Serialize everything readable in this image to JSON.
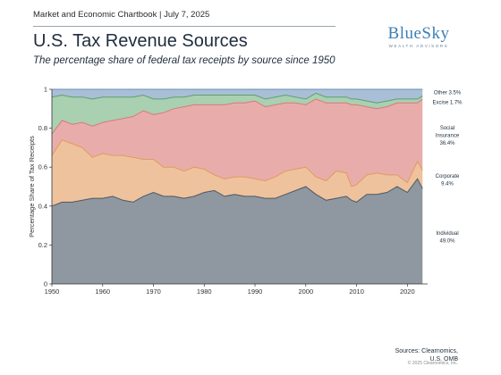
{
  "header": {
    "chartbook": "Market and Economic Chartbook | July 7, 2025",
    "title": "U.S. Tax Revenue Sources",
    "subtitle": "The percentage share of federal tax receipts by source since 1950"
  },
  "logo": {
    "name": "BlueSky",
    "tagline": "WEALTH ADVISORS"
  },
  "footer": {
    "source_line1": "Sources: Clearnomics,",
    "source_line2": "U.S. OMB",
    "copyright": "© 2025 Clearnomics, Inc."
  },
  "chart_data": {
    "type": "area",
    "stacked": true,
    "ylabel": "Percentage Share of Tax Receipts",
    "xlabel": "",
    "xlim": [
      1950,
      2024
    ],
    "ylim": [
      0,
      1
    ],
    "x_ticks": [
      1950,
      1960,
      1970,
      1980,
      1990,
      2000,
      2010,
      2020
    ],
    "y_ticks": [
      0,
      0.2,
      0.4,
      0.6,
      0.8,
      1
    ],
    "y_tick_labels": [
      "0",
      "0.2",
      "0.4",
      "0.6",
      "0.8",
      "1"
    ],
    "grid": false,
    "legend": "inline labels at right end",
    "colors": {
      "Individual": "#8f98a0",
      "Corporate": "#eec29c",
      "Social Insurance": "#e8adab",
      "Excise": "#a9d0b1",
      "Other": "#a9bfd8"
    },
    "line_colors": {
      "Individual": "#4d5862",
      "Corporate": "#e09a62",
      "Social Insurance": "#d8797c",
      "Excise": "#5e9f6e",
      "Other": "#6d8fb8"
    },
    "end_labels": [
      {
        "series": "Other",
        "lines": [
          "Other  3.5%"
        ]
      },
      {
        "series": "Excise",
        "lines": [
          "Excise  1.7%"
        ]
      },
      {
        "series": "Social Insurance",
        "lines": [
          "Social",
          "Insurance",
          "36.4%"
        ]
      },
      {
        "series": "Corporate",
        "lines": [
          "Corporate",
          "9.4%"
        ]
      },
      {
        "series": "Individual",
        "lines": [
          "Individual",
          "49.0%"
        ]
      }
    ],
    "x": [
      1950,
      1952,
      1954,
      1956,
      1958,
      1960,
      1962,
      1964,
      1966,
      1968,
      1970,
      1972,
      1974,
      1976,
      1978,
      1980,
      1982,
      1984,
      1986,
      1988,
      1990,
      1992,
      1994,
      1996,
      1998,
      2000,
      2002,
      2004,
      2006,
      2008,
      2009,
      2010,
      2012,
      2014,
      2016,
      2018,
      2020,
      2022,
      2023
    ],
    "series": [
      {
        "name": "Individual",
        "values": [
          0.4,
          0.42,
          0.42,
          0.43,
          0.44,
          0.44,
          0.45,
          0.43,
          0.42,
          0.45,
          0.47,
          0.45,
          0.45,
          0.44,
          0.45,
          0.47,
          0.48,
          0.45,
          0.46,
          0.45,
          0.45,
          0.44,
          0.44,
          0.46,
          0.48,
          0.5,
          0.46,
          0.43,
          0.44,
          0.45,
          0.43,
          0.42,
          0.46,
          0.46,
          0.47,
          0.5,
          0.47,
          0.54,
          0.49
        ]
      },
      {
        "name": "Corporate",
        "values": [
          0.26,
          0.32,
          0.3,
          0.27,
          0.21,
          0.23,
          0.21,
          0.23,
          0.23,
          0.19,
          0.17,
          0.15,
          0.15,
          0.14,
          0.15,
          0.12,
          0.08,
          0.09,
          0.09,
          0.1,
          0.09,
          0.09,
          0.11,
          0.12,
          0.11,
          0.1,
          0.09,
          0.1,
          0.14,
          0.12,
          0.07,
          0.09,
          0.1,
          0.11,
          0.09,
          0.06,
          0.05,
          0.09,
          0.094
        ]
      },
      {
        "name": "Social Insurance",
        "values": [
          0.11,
          0.1,
          0.1,
          0.13,
          0.16,
          0.16,
          0.18,
          0.19,
          0.21,
          0.25,
          0.23,
          0.28,
          0.3,
          0.33,
          0.32,
          0.33,
          0.36,
          0.38,
          0.38,
          0.38,
          0.4,
          0.38,
          0.37,
          0.35,
          0.34,
          0.32,
          0.4,
          0.4,
          0.35,
          0.36,
          0.42,
          0.41,
          0.35,
          0.33,
          0.35,
          0.37,
          0.41,
          0.3,
          0.364
        ]
      },
      {
        "name": "Excise",
        "values": [
          0.19,
          0.13,
          0.14,
          0.13,
          0.14,
          0.13,
          0.12,
          0.11,
          0.1,
          0.08,
          0.08,
          0.07,
          0.06,
          0.05,
          0.05,
          0.05,
          0.05,
          0.05,
          0.04,
          0.04,
          0.03,
          0.04,
          0.04,
          0.04,
          0.03,
          0.03,
          0.03,
          0.03,
          0.03,
          0.03,
          0.03,
          0.03,
          0.03,
          0.03,
          0.03,
          0.02,
          0.02,
          0.02,
          0.017
        ]
      },
      {
        "name": "Other",
        "values": [
          0.04,
          0.03,
          0.04,
          0.04,
          0.05,
          0.04,
          0.04,
          0.04,
          0.04,
          0.03,
          0.05,
          0.05,
          0.04,
          0.04,
          0.03,
          0.03,
          0.03,
          0.03,
          0.03,
          0.03,
          0.03,
          0.05,
          0.04,
          0.03,
          0.04,
          0.05,
          0.02,
          0.04,
          0.04,
          0.04,
          0.05,
          0.05,
          0.06,
          0.07,
          0.06,
          0.05,
          0.05,
          0.05,
          0.035
        ]
      }
    ]
  }
}
